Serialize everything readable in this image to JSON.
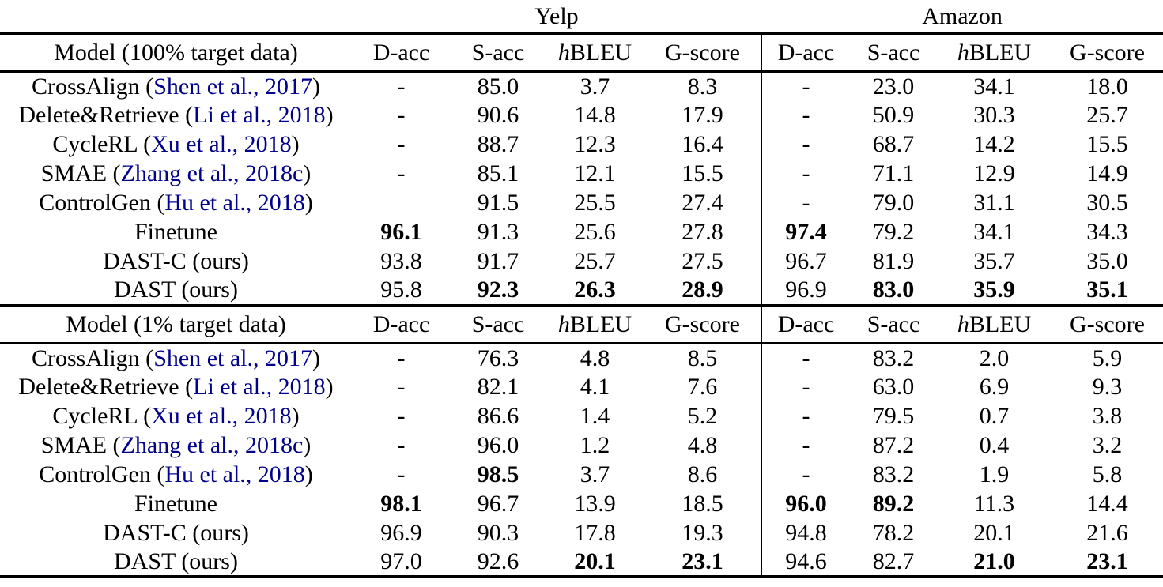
{
  "colors": {
    "text": "#000000",
    "citation_link": "#00008B",
    "rule": "#000000",
    "background": "#ffffff"
  },
  "table": {
    "groups": [
      {
        "label": "Yelp"
      },
      {
        "label": "Amazon"
      }
    ],
    "metrics": [
      {
        "italic_prefix": "",
        "label": "D-acc"
      },
      {
        "italic_prefix": "",
        "label": "S-acc"
      },
      {
        "italic_prefix": "h",
        "label": "BLEU"
      },
      {
        "italic_prefix": "",
        "label": "G-score"
      }
    ],
    "sections": [
      {
        "model_header": "Model (100% target data)",
        "rows": [
          {
            "label_prefix": "CrossAlign (",
            "cite": "Shen et al., 2017",
            "label_suffix": ")",
            "values": [
              "-",
              "85.0",
              "3.7",
              "8.3",
              "-",
              "23.0",
              "34.1",
              "18.0"
            ],
            "bold": [
              0,
              0,
              0,
              0,
              0,
              0,
              0,
              0
            ]
          },
          {
            "label_prefix": "Delete&Retrieve (",
            "cite": "Li et al., 2018",
            "label_suffix": ")",
            "values": [
              "-",
              "90.6",
              "14.8",
              "17.9",
              "-",
              "50.9",
              "30.3",
              "25.7"
            ],
            "bold": [
              0,
              0,
              0,
              0,
              0,
              0,
              0,
              0
            ]
          },
          {
            "label_prefix": "CycleRL (",
            "cite": "Xu et al., 2018",
            "label_suffix": ")",
            "values": [
              "-",
              "88.7",
              "12.3",
              "16.4",
              "-",
              "68.7",
              "14.2",
              "15.5"
            ],
            "bold": [
              0,
              0,
              0,
              0,
              0,
              0,
              0,
              0
            ]
          },
          {
            "label_prefix": "SMAE (",
            "cite": "Zhang et al., 2018c",
            "label_suffix": ")",
            "values": [
              "-",
              "85.1",
              "12.1",
              "15.5",
              "-",
              "71.1",
              "12.9",
              "14.9"
            ],
            "bold": [
              0,
              0,
              0,
              0,
              0,
              0,
              0,
              0
            ]
          },
          {
            "label_prefix": "ControlGen (",
            "cite": "Hu et al., 2018",
            "label_suffix": ")",
            "values": [
              "",
              "91.5",
              "25.5",
              "27.4",
              "-",
              "79.0",
              "31.1",
              "30.5"
            ],
            "bold": [
              0,
              0,
              0,
              0,
              0,
              0,
              0,
              0
            ]
          },
          {
            "label_prefix": "Finetune",
            "cite": null,
            "label_suffix": "",
            "values": [
              "96.1",
              "91.3",
              "25.6",
              "27.8",
              "97.4",
              "79.2",
              "34.1",
              "34.3"
            ],
            "bold": [
              1,
              0,
              0,
              0,
              1,
              0,
              0,
              0
            ]
          },
          {
            "label_prefix": "DAST-C (ours)",
            "cite": null,
            "label_suffix": "",
            "values": [
              "93.8",
              "91.7",
              "25.7",
              "27.5",
              "96.7",
              "81.9",
              "35.7",
              "35.0"
            ],
            "bold": [
              0,
              0,
              0,
              0,
              0,
              0,
              0,
              0
            ]
          },
          {
            "label_prefix": "DAST (ours)",
            "cite": null,
            "label_suffix": "",
            "values": [
              "95.8",
              "92.3",
              "26.3",
              "28.9",
              "96.9",
              "83.0",
              "35.9",
              "35.1"
            ],
            "bold": [
              0,
              1,
              1,
              1,
              0,
              1,
              1,
              1
            ]
          }
        ]
      },
      {
        "model_header": "Model (1% target data)",
        "rows": [
          {
            "label_prefix": "CrossAlign (",
            "cite": "Shen et al., 2017",
            "label_suffix": ")",
            "values": [
              "-",
              "76.3",
              "4.8",
              "8.5",
              "-",
              "83.2",
              "2.0",
              "5.9"
            ],
            "bold": [
              0,
              0,
              0,
              0,
              0,
              0,
              0,
              0
            ]
          },
          {
            "label_prefix": "Delete&Retrieve (",
            "cite": "Li et al., 2018",
            "label_suffix": ")",
            "values": [
              "-",
              "82.1",
              "4.1",
              "7.6",
              "-",
              "63.0",
              "6.9",
              "9.3"
            ],
            "bold": [
              0,
              0,
              0,
              0,
              0,
              0,
              0,
              0
            ]
          },
          {
            "label_prefix": "CycleRL (",
            "cite": "Xu et al., 2018",
            "label_suffix": ")",
            "values": [
              "-",
              "86.6",
              "1.4",
              "5.2",
              "-",
              "79.5",
              "0.7",
              "3.8"
            ],
            "bold": [
              0,
              0,
              0,
              0,
              0,
              0,
              0,
              0
            ]
          },
          {
            "label_prefix": "SMAE (",
            "cite": "Zhang et al., 2018c",
            "label_suffix": ")",
            "values": [
              "-",
              "96.0",
              "1.2",
              "4.8",
              "-",
              "87.2",
              "0.4",
              "3.2"
            ],
            "bold": [
              0,
              0,
              0,
              0,
              0,
              0,
              0,
              0
            ]
          },
          {
            "label_prefix": "ControlGen (",
            "cite": "Hu et al., 2018",
            "label_suffix": ")",
            "values": [
              "-",
              "98.5",
              "3.7",
              "8.6",
              "-",
              "83.2",
              "1.9",
              "5.8"
            ],
            "bold": [
              0,
              1,
              0,
              0,
              0,
              0,
              0,
              0
            ]
          },
          {
            "label_prefix": "Finetune",
            "cite": null,
            "label_suffix": "",
            "values": [
              "98.1",
              "96.7",
              "13.9",
              "18.5",
              "96.0",
              "89.2",
              "11.3",
              "14.4"
            ],
            "bold": [
              1,
              0,
              0,
              0,
              1,
              1,
              0,
              0
            ]
          },
          {
            "label_prefix": "DAST-C (ours)",
            "cite": null,
            "label_suffix": "",
            "values": [
              "96.9",
              "90.3",
              "17.8",
              "19.3",
              "94.8",
              "78.2",
              "20.1",
              "21.6"
            ],
            "bold": [
              0,
              0,
              0,
              0,
              0,
              0,
              0,
              0
            ]
          },
          {
            "label_prefix": "DAST (ours)",
            "cite": null,
            "label_suffix": "",
            "values": [
              "97.0",
              "92.6",
              "20.1",
              "23.1",
              "94.6",
              "82.7",
              "21.0",
              "23.1"
            ],
            "bold": [
              0,
              0,
              1,
              1,
              0,
              0,
              1,
              1
            ]
          }
        ]
      }
    ]
  }
}
